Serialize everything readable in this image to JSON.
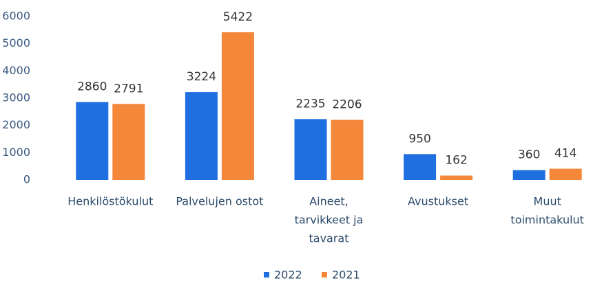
{
  "chart_data": {
    "type": "bar",
    "categories": [
      [
        "Henkilöstökulut"
      ],
      [
        "Palvelujen ostot"
      ],
      [
        "Aineet,",
        "tarvikkeet ja",
        "tavarat"
      ],
      [
        "Avustukset"
      ],
      [
        "Muut",
        "toimintakulut"
      ]
    ],
    "series": [
      {
        "name": "2022",
        "color": "#1f6fe0",
        "values": [
          2860,
          3224,
          2235,
          950,
          360
        ]
      },
      {
        "name": "2021",
        "color": "#f5873a",
        "values": [
          2791,
          5422,
          2206,
          162,
          414
        ]
      }
    ],
    "ylim": [
      0,
      6000
    ],
    "yticks": [
      0,
      1000,
      2000,
      3000,
      4000,
      5000,
      6000
    ],
    "grid": false,
    "legend": "bottom"
  }
}
